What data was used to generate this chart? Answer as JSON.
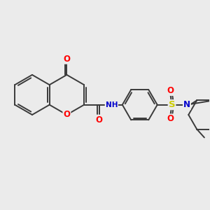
{
  "bg_color": "#ebebeb",
  "bond_color": "#3a3a3a",
  "bond_width": 1.4,
  "atom_colors": {
    "O": "#ff0000",
    "N": "#0000cc",
    "S": "#cccc00",
    "C": "#3a3a3a"
  },
  "font_size": 8.5,
  "font_size_h": 7.5
}
